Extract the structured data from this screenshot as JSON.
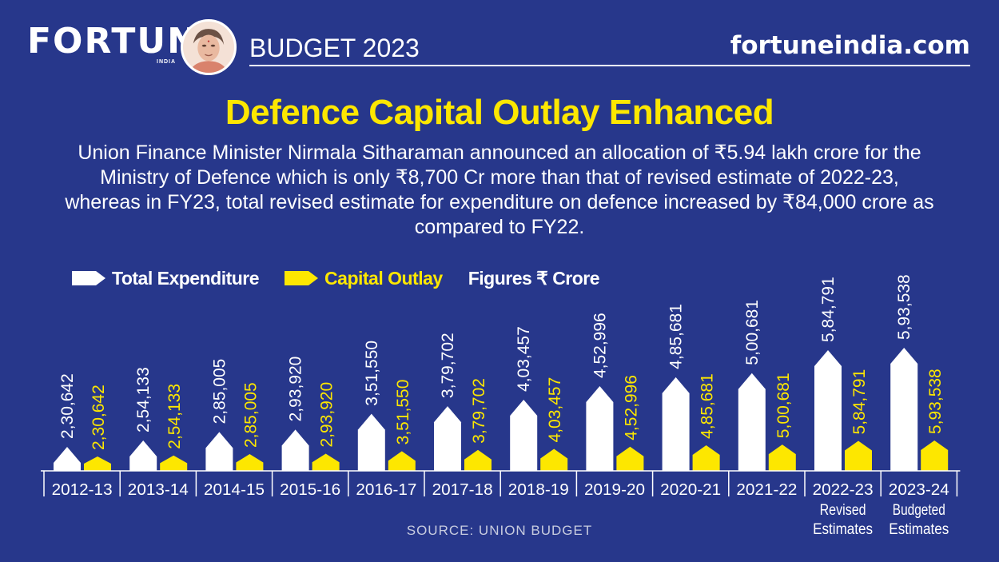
{
  "header": {
    "logo_text": "FORTUNE",
    "logo_sub": "INDIA",
    "budget_label": "BUDGET 2023",
    "site": "fortuneindia.com"
  },
  "title": "Defence Capital Outlay Enhanced",
  "description": "Union Finance Minister Nirmala Sitharaman announced an allocation of ₹5.94 lakh crore for the Ministry of Defence which is only ₹8,700 Cr more than that of revised estimate of 2022-23, whereas in FY23, total revised estimate for expenditure on defence increased by ₹84,000 crore as compared to FY22.",
  "legend": {
    "total": "Total Expenditure",
    "capital": "Capital Outlay",
    "figures": "Figures ₹ Crore"
  },
  "colors": {
    "background": "#27378b",
    "total": "#ffffff",
    "capital": "#fde700"
  },
  "source": "SOURCE: UNION BUDGET",
  "chart_data": {
    "type": "bar",
    "title": "Defence Capital Outlay Enhanced",
    "xlabel": "",
    "ylabel": "Figures ₹ Crore",
    "categories": [
      "2012-13",
      "2013-14",
      "2014-15",
      "2015-16",
      "2016-17",
      "2017-18",
      "2018-19",
      "2019-20",
      "2020-21",
      "2021-22",
      "2022-23",
      "2023-24"
    ],
    "category_notes": [
      "",
      "",
      "",
      "",
      "",
      "",
      "",
      "",
      "",
      "",
      "Revised Estimates",
      "Budgeted Estimates"
    ],
    "series": [
      {
        "name": "Total Expenditure",
        "values": [
          230642,
          254133,
          285005,
          293920,
          351550,
          379702,
          403457,
          452996,
          485681,
          500681,
          584791,
          593538
        ],
        "labels": [
          "2,30,642",
          "2,54,133",
          "2,85,005",
          "2,93,920",
          "3,51,550",
          "3,79,702",
          "4,03,457",
          "4,52,996",
          "4,85,681",
          "5,00,681",
          "5,84,791",
          "5,93,538"
        ]
      },
      {
        "name": "Capital Outlay",
        "values": [
          230642,
          254133,
          285005,
          293920,
          351550,
          379702,
          403457,
          452996,
          485681,
          500681,
          584791,
          593538
        ],
        "labels": [
          "2,30,642",
          "2,54,133",
          "2,85,005",
          "2,93,920",
          "3,51,550",
          "3,79,702",
          "4,03,457",
          "4,52,996",
          "4,85,681",
          "5,00,681",
          "5,84,791",
          "5,93,538"
        ]
      }
    ],
    "ylim": [
      0,
      600000
    ],
    "grid": false,
    "legend_position": "top-left"
  }
}
